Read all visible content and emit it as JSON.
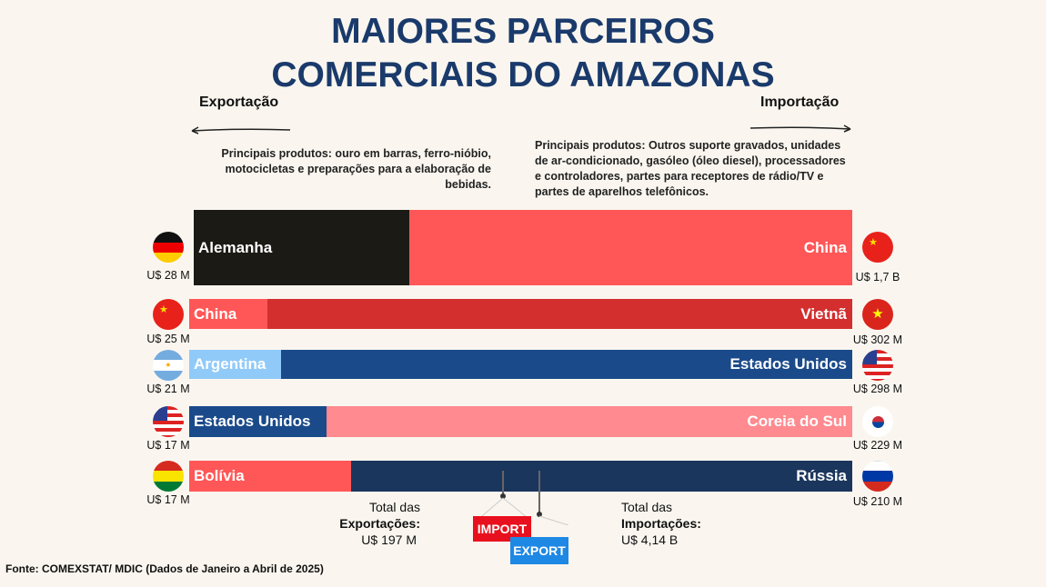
{
  "title": {
    "line1": "MAIORES PARCEIROS",
    "line2": "COMERCIAIS DO AMAZONAS"
  },
  "export": {
    "label": "Exportação",
    "products": "Principais produtos: ouro em barras, ferro-nióbio, motocicletas e preparações para a elaboração de bebidas.",
    "total_label1": "Total das",
    "total_label2": "Exportações:",
    "total_value": "U$ 197 M"
  },
  "import": {
    "label": "Importação",
    "products": "Principais produtos: Outros suporte gravados, unidades de ar-condicionado, gasóleo (óleo diesel), processadores e controladores, partes para receptores de rádio/TV e partes de aparelhos telefônicos.",
    "total_label1": "Total das",
    "total_label2": "Importações:",
    "total_value": "U$ 4,14 B"
  },
  "chart_data": {
    "type": "bar",
    "rows": [
      {
        "export_country": "Alemanha",
        "export_value": "U$ 28 M",
        "import_country": "China",
        "import_value": "U$ 1,7 B",
        "export_color": "#1c1a14",
        "import_color": "#ff5757"
      },
      {
        "export_country": "China",
        "export_value": "U$ 25 M",
        "import_country": "Vietnã",
        "import_value": "U$ 302 M",
        "export_color": "#ff5757",
        "import_color": "#d32f2f"
      },
      {
        "export_country": "Argentina",
        "export_value": "U$ 21 M",
        "import_country": "Estados Unidos",
        "import_value": "U$ 298 M",
        "export_color": "#90caf9",
        "import_color": "#1a4a8a"
      },
      {
        "export_country": "Estados Unidos",
        "export_value": "U$ 17 M",
        "import_country": "Coreia do Sul",
        "import_value": "U$ 229 M",
        "export_color": "#1a4a8a",
        "import_color": "#ff8a8f"
      },
      {
        "export_country": "Bolívia",
        "export_value": "U$ 17 M",
        "import_country": "Rússia",
        "import_value": "U$ 210 M",
        "export_color": "#ff5757",
        "import_color": "#1b365d"
      }
    ]
  },
  "tags": {
    "import": "IMPORT",
    "export": "EXPORT"
  },
  "source": "Fonte: COMEXSTAT/ MDIC (Dados de Janeiro a Abril de 2025)"
}
